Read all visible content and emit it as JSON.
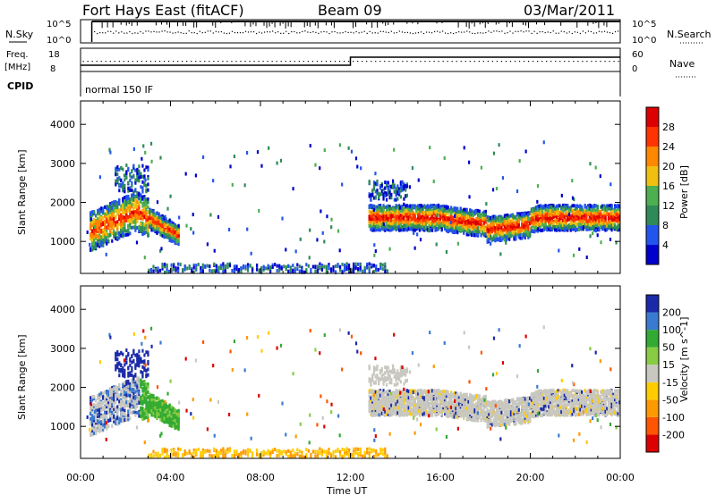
{
  "header": {
    "station": "Fort Hays East (fitACF)",
    "beam": "Beam 09",
    "date": "03/Mar/2011"
  },
  "top_panel": {
    "left_label": "N.Sky",
    "right_label": "N.Search",
    "left_ticks": [
      "10^5",
      "10^0"
    ],
    "right_ticks": [
      "10^5",
      "10^0"
    ]
  },
  "freq_panel": {
    "left_label_1": "Freq.",
    "left_label_2": "[MHz]",
    "right_label": "Nave",
    "left_ticks": [
      "18",
      "8"
    ],
    "right_ticks": [
      "60",
      "0"
    ],
    "cpid_label": "CPID",
    "mode_text": "normal 150 IF"
  },
  "colors": {
    "power": [
      "#0000cc",
      "#2255ee",
      "#2e8b57",
      "#4caf50",
      "#f0c010",
      "#ff8800",
      "#ff3300",
      "#dd0000"
    ],
    "velocity": [
      "#1a2aa8",
      "#3a7ad0",
      "#33aa33",
      "#88cc44",
      "#c8c8c0",
      "#ffcc00",
      "#ff9900",
      "#ff5500",
      "#dd0000"
    ]
  },
  "chart_data": [
    {
      "type": "heatmap",
      "title": "",
      "xlabel": "Time UT",
      "ylabel": "Slant Range [km]",
      "x_ticks": [
        "00:00",
        "04:00",
        "08:00",
        "12:00",
        "16:00",
        "20:00",
        "00:00"
      ],
      "x_range_hours": [
        0,
        24
      ],
      "y_ticks": [
        1000,
        2000,
        3000,
        4000
      ],
      "y_range_km": [
        180,
        4600
      ],
      "colorbar_label": "Power [dB]",
      "colorbar_ticks": [
        "4",
        "8",
        "12",
        "16",
        "20",
        "24",
        "28"
      ],
      "colorbar_range": [
        0,
        30
      ]
    },
    {
      "type": "heatmap",
      "title": "",
      "xlabel": "Time UT",
      "ylabel": "Slant Range [km]",
      "x_ticks": [
        "00:00",
        "04:00",
        "08:00",
        "12:00",
        "16:00",
        "20:00",
        "00:00"
      ],
      "x_range_hours": [
        0,
        24
      ],
      "y_ticks": [
        1000,
        2000,
        3000,
        4000
      ],
      "y_range_km": [
        180,
        4600
      ],
      "colorbar_label": "Velocity [m s^-1]",
      "colorbar_ticks": [
        "200",
        "100",
        "50",
        "15",
        "-15",
        "-50",
        "-100",
        "-200"
      ]
    }
  ]
}
